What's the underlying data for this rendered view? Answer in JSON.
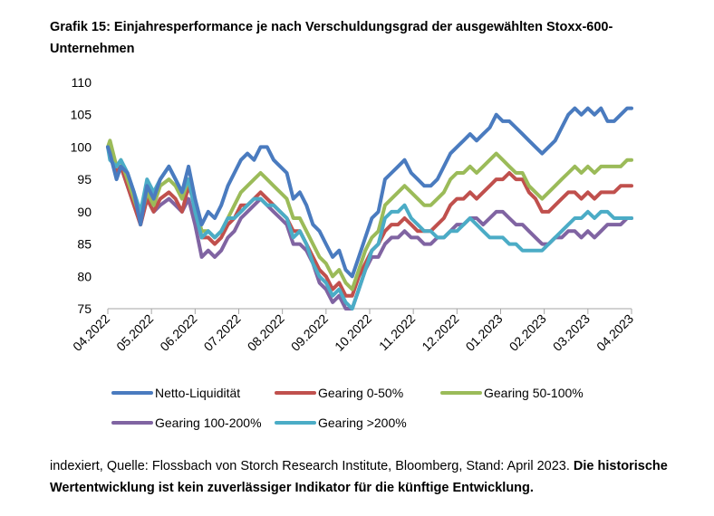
{
  "title": "Grafik 15: Einjahresperformance je nach Verschuldungsgrad der ausgewählten Stoxx-600-Unternehmen",
  "source": {
    "normal": "indexiert, Quelle: Flossbach von Storch Research Institute, Bloomberg, Stand: April 2023.",
    "bold": "Die historische Wertentwicklung ist kein zuverlässiger Indikator für die künftige Entwicklung."
  },
  "colors": {
    "Netto-Liquidität": "#4a7bbf",
    "Gearing 0-50%": "#c0504d",
    "Gearing 50-100%": "#9bbb59",
    "Gearing 100-200%": "#8064a2",
    "Gearing >200%": "#4bacc6"
  },
  "chart_data": {
    "type": "line",
    "ylim": [
      75,
      110
    ],
    "yticks": [
      75,
      80,
      85,
      90,
      95,
      100,
      105,
      110
    ],
    "xlim": [
      0,
      12
    ],
    "xticks": [
      "04.2022",
      "05.2022",
      "06.2022",
      "07.2022",
      "08.2022",
      "09.2022",
      "10.2022",
      "11.2022",
      "12.2022",
      "01.2023",
      "02.2023",
      "03.2023",
      "04.2023"
    ],
    "legend_position": "bottom",
    "series": [
      {
        "name": "Netto-Liquidität",
        "x": [
          0,
          0.05,
          0.2,
          0.3,
          0.45,
          0.6,
          0.75,
          0.9,
          1.05,
          1.2,
          1.4,
          1.55,
          1.7,
          1.85,
          2.0,
          2.15,
          2.3,
          2.45,
          2.6,
          2.75,
          2.9,
          3.05,
          3.2,
          3.35,
          3.5,
          3.65,
          3.8,
          3.95,
          4.1,
          4.25,
          4.4,
          4.55,
          4.7,
          4.85,
          5.0,
          5.15,
          5.3,
          5.45,
          5.6,
          5.75,
          5.9,
          6.05,
          6.2,
          6.35,
          6.5,
          6.65,
          6.8,
          6.95,
          7.1,
          7.25,
          7.4,
          7.55,
          7.7,
          7.85,
          8.0,
          8.15,
          8.3,
          8.45,
          8.6,
          8.75,
          8.9,
          9.05,
          9.2,
          9.35,
          9.5,
          9.65,
          9.8,
          9.95,
          10.1,
          10.25,
          10.4,
          10.55,
          10.7,
          10.85,
          11.0,
          11.15,
          11.3,
          11.45,
          11.6,
          11.75,
          11.9,
          12.0
        ],
        "y": [
          100,
          99,
          95,
          97,
          96,
          93,
          88,
          94,
          92,
          95,
          97,
          95,
          93,
          97,
          92,
          88,
          90,
          89,
          91,
          94,
          96,
          98,
          99,
          98,
          100,
          100,
          98,
          97,
          96,
          92,
          93,
          91,
          88,
          87,
          85,
          83,
          84,
          81,
          80,
          83,
          86,
          89,
          90,
          95,
          96,
          97,
          98,
          96,
          95,
          94,
          94,
          95,
          97,
          99,
          100,
          101,
          102,
          101,
          102,
          103,
          105,
          104,
          104,
          103,
          102,
          101,
          100,
          99,
          100,
          101,
          103,
          105,
          106,
          105,
          106,
          105,
          106,
          104,
          104,
          105,
          106,
          106
        ],
        "label_approx": true
      },
      {
        "name": "Gearing 0-50%",
        "x": [
          0,
          0.05,
          0.2,
          0.3,
          0.45,
          0.6,
          0.75,
          0.9,
          1.05,
          1.2,
          1.4,
          1.55,
          1.7,
          1.85,
          2.0,
          2.15,
          2.3,
          2.45,
          2.6,
          2.75,
          2.9,
          3.05,
          3.2,
          3.35,
          3.5,
          3.65,
          3.8,
          3.95,
          4.1,
          4.25,
          4.4,
          4.55,
          4.7,
          4.85,
          5.0,
          5.15,
          5.3,
          5.45,
          5.6,
          5.75,
          5.9,
          6.05,
          6.2,
          6.35,
          6.5,
          6.65,
          6.8,
          6.95,
          7.1,
          7.25,
          7.4,
          7.55,
          7.7,
          7.85,
          8.0,
          8.15,
          8.3,
          8.45,
          8.6,
          8.75,
          8.9,
          9.05,
          9.2,
          9.35,
          9.5,
          9.65,
          9.8,
          9.95,
          10.1,
          10.25,
          10.4,
          10.55,
          10.7,
          10.85,
          11.0,
          11.15,
          11.3,
          11.45,
          11.6,
          11.75,
          11.9,
          12.0
        ],
        "y": [
          100,
          99,
          96,
          97,
          94,
          91,
          88,
          92,
          90,
          92,
          93,
          92,
          90,
          94,
          91,
          86,
          86,
          85,
          86,
          88,
          89,
          91,
          91,
          92,
          93,
          92,
          91,
          90,
          89,
          87,
          87,
          85,
          83,
          81,
          80,
          78,
          79,
          77,
          77,
          80,
          82,
          84,
          85,
          87,
          88,
          88,
          89,
          88,
          87,
          87,
          87,
          88,
          89,
          91,
          92,
          92,
          93,
          92,
          93,
          94,
          95,
          95,
          96,
          95,
          95,
          93,
          92,
          90,
          90,
          91,
          92,
          93,
          93,
          92,
          93,
          92,
          93,
          93,
          93,
          94,
          94,
          94
        ]
      },
      {
        "name": "Gearing 50-100%",
        "x": [
          0,
          0.05,
          0.2,
          0.3,
          0.45,
          0.6,
          0.75,
          0.9,
          1.05,
          1.2,
          1.4,
          1.55,
          1.7,
          1.85,
          2.0,
          2.15,
          2.3,
          2.45,
          2.6,
          2.75,
          2.9,
          3.05,
          3.2,
          3.35,
          3.5,
          3.65,
          3.8,
          3.95,
          4.1,
          4.25,
          4.4,
          4.55,
          4.7,
          4.85,
          5.0,
          5.15,
          5.3,
          5.45,
          5.6,
          5.75,
          5.9,
          6.05,
          6.2,
          6.35,
          6.5,
          6.65,
          6.8,
          6.95,
          7.1,
          7.25,
          7.4,
          7.55,
          7.7,
          7.85,
          8.0,
          8.15,
          8.3,
          8.45,
          8.6,
          8.75,
          8.9,
          9.05,
          9.2,
          9.35,
          9.5,
          9.65,
          9.8,
          9.95,
          10.1,
          10.25,
          10.4,
          10.55,
          10.7,
          10.85,
          11.0,
          11.15,
          11.3,
          11.45,
          11.6,
          11.75,
          11.9,
          12.0
        ],
        "y": [
          100,
          101,
          97,
          98,
          95,
          92,
          89,
          93,
          91,
          94,
          95,
          94,
          92,
          95,
          91,
          87,
          87,
          86,
          87,
          89,
          91,
          93,
          94,
          95,
          96,
          95,
          94,
          93,
          92,
          89,
          89,
          87,
          85,
          83,
          82,
          80,
          81,
          79,
          78,
          81,
          84,
          86,
          87,
          91,
          92,
          93,
          94,
          93,
          92,
          91,
          91,
          92,
          93,
          95,
          96,
          96,
          97,
          96,
          97,
          98,
          99,
          98,
          97,
          96,
          96,
          94,
          93,
          92,
          93,
          94,
          95,
          96,
          97,
          96,
          97,
          96,
          97,
          97,
          97,
          97,
          98,
          98
        ]
      },
      {
        "name": "Gearing 100-200%",
        "x": [
          0,
          0.05,
          0.2,
          0.3,
          0.45,
          0.6,
          0.75,
          0.9,
          1.05,
          1.2,
          1.4,
          1.55,
          1.7,
          1.85,
          2.0,
          2.15,
          2.3,
          2.45,
          2.6,
          2.75,
          2.9,
          3.05,
          3.2,
          3.35,
          3.5,
          3.65,
          3.8,
          3.95,
          4.1,
          4.25,
          4.4,
          4.55,
          4.7,
          4.85,
          5.0,
          5.15,
          5.3,
          5.45,
          5.6,
          5.75,
          5.9,
          6.05,
          6.2,
          6.35,
          6.5,
          6.65,
          6.8,
          6.95,
          7.1,
          7.25,
          7.4,
          7.55,
          7.7,
          7.85,
          8.0,
          8.15,
          8.3,
          8.45,
          8.6,
          8.75,
          8.9,
          9.05,
          9.2,
          9.35,
          9.5,
          9.65,
          9.8,
          9.95,
          10.1,
          10.25,
          10.4,
          10.55,
          10.7,
          10.85,
          11.0,
          11.15,
          11.3,
          11.45,
          11.6,
          11.75,
          11.9,
          12.0
        ],
        "y": [
          100,
          99,
          96,
          97,
          94,
          91,
          88,
          92,
          90,
          91,
          92,
          91,
          90,
          92,
          88,
          83,
          84,
          83,
          84,
          86,
          87,
          89,
          90,
          91,
          92,
          91,
          90,
          89,
          88,
          85,
          85,
          84,
          82,
          79,
          78,
          76,
          77,
          75,
          75,
          78,
          81,
          83,
          83,
          85,
          86,
          86,
          87,
          86,
          86,
          85,
          85,
          86,
          86,
          87,
          88,
          88,
          89,
          89,
          88,
          89,
          90,
          90,
          89,
          88,
          88,
          87,
          86,
          85,
          85,
          86,
          86,
          87,
          87,
          86,
          87,
          86,
          87,
          88,
          88,
          88,
          89,
          89
        ]
      },
      {
        "name": "Gearing >200%",
        "x": [
          0,
          0.05,
          0.2,
          0.3,
          0.45,
          0.6,
          0.75,
          0.9,
          1.05,
          1.2,
          1.4,
          1.55,
          1.7,
          1.85,
          2.0,
          2.15,
          2.3,
          2.45,
          2.6,
          2.75,
          2.9,
          3.05,
          3.2,
          3.35,
          3.5,
          3.65,
          3.8,
          3.95,
          4.1,
          4.25,
          4.4,
          4.55,
          4.7,
          4.85,
          5.0,
          5.15,
          5.3,
          5.45,
          5.6,
          5.75,
          5.9,
          6.05,
          6.2,
          6.35,
          6.5,
          6.65,
          6.8,
          6.95,
          7.1,
          7.25,
          7.4,
          7.55,
          7.7,
          7.85,
          8.0,
          8.15,
          8.3,
          8.45,
          8.6,
          8.75,
          8.9,
          9.05,
          9.2,
          9.35,
          9.5,
          9.65,
          9.8,
          9.95,
          10.1,
          10.25,
          10.4,
          10.55,
          10.7,
          10.85,
          11.0,
          11.15,
          11.3,
          11.45,
          11.6,
          11.75,
          11.9,
          12.0
        ],
        "y": [
          100,
          98,
          97,
          98,
          96,
          93,
          90,
          95,
          93,
          95,
          97,
          95,
          93,
          95,
          90,
          86,
          87,
          86,
          87,
          89,
          89,
          90,
          91,
          92,
          92,
          91,
          91,
          90,
          89,
          86,
          87,
          85,
          82,
          80,
          79,
          77,
          78,
          76,
          75,
          78,
          81,
          84,
          85,
          89,
          90,
          90,
          91,
          89,
          88,
          87,
          87,
          86,
          86,
          87,
          87,
          88,
          89,
          88,
          87,
          86,
          86,
          86,
          85,
          85,
          84,
          84,
          84,
          84,
          85,
          86,
          87,
          88,
          89,
          89,
          90,
          89,
          90,
          90,
          89,
          89,
          89,
          89
        ]
      }
    ]
  },
  "legend_rows": [
    [
      "Netto-Liquidität",
      "Gearing 0-50%",
      "Gearing 50-100%"
    ],
    [
      "Gearing 100-200%",
      "Gearing >200%"
    ]
  ]
}
